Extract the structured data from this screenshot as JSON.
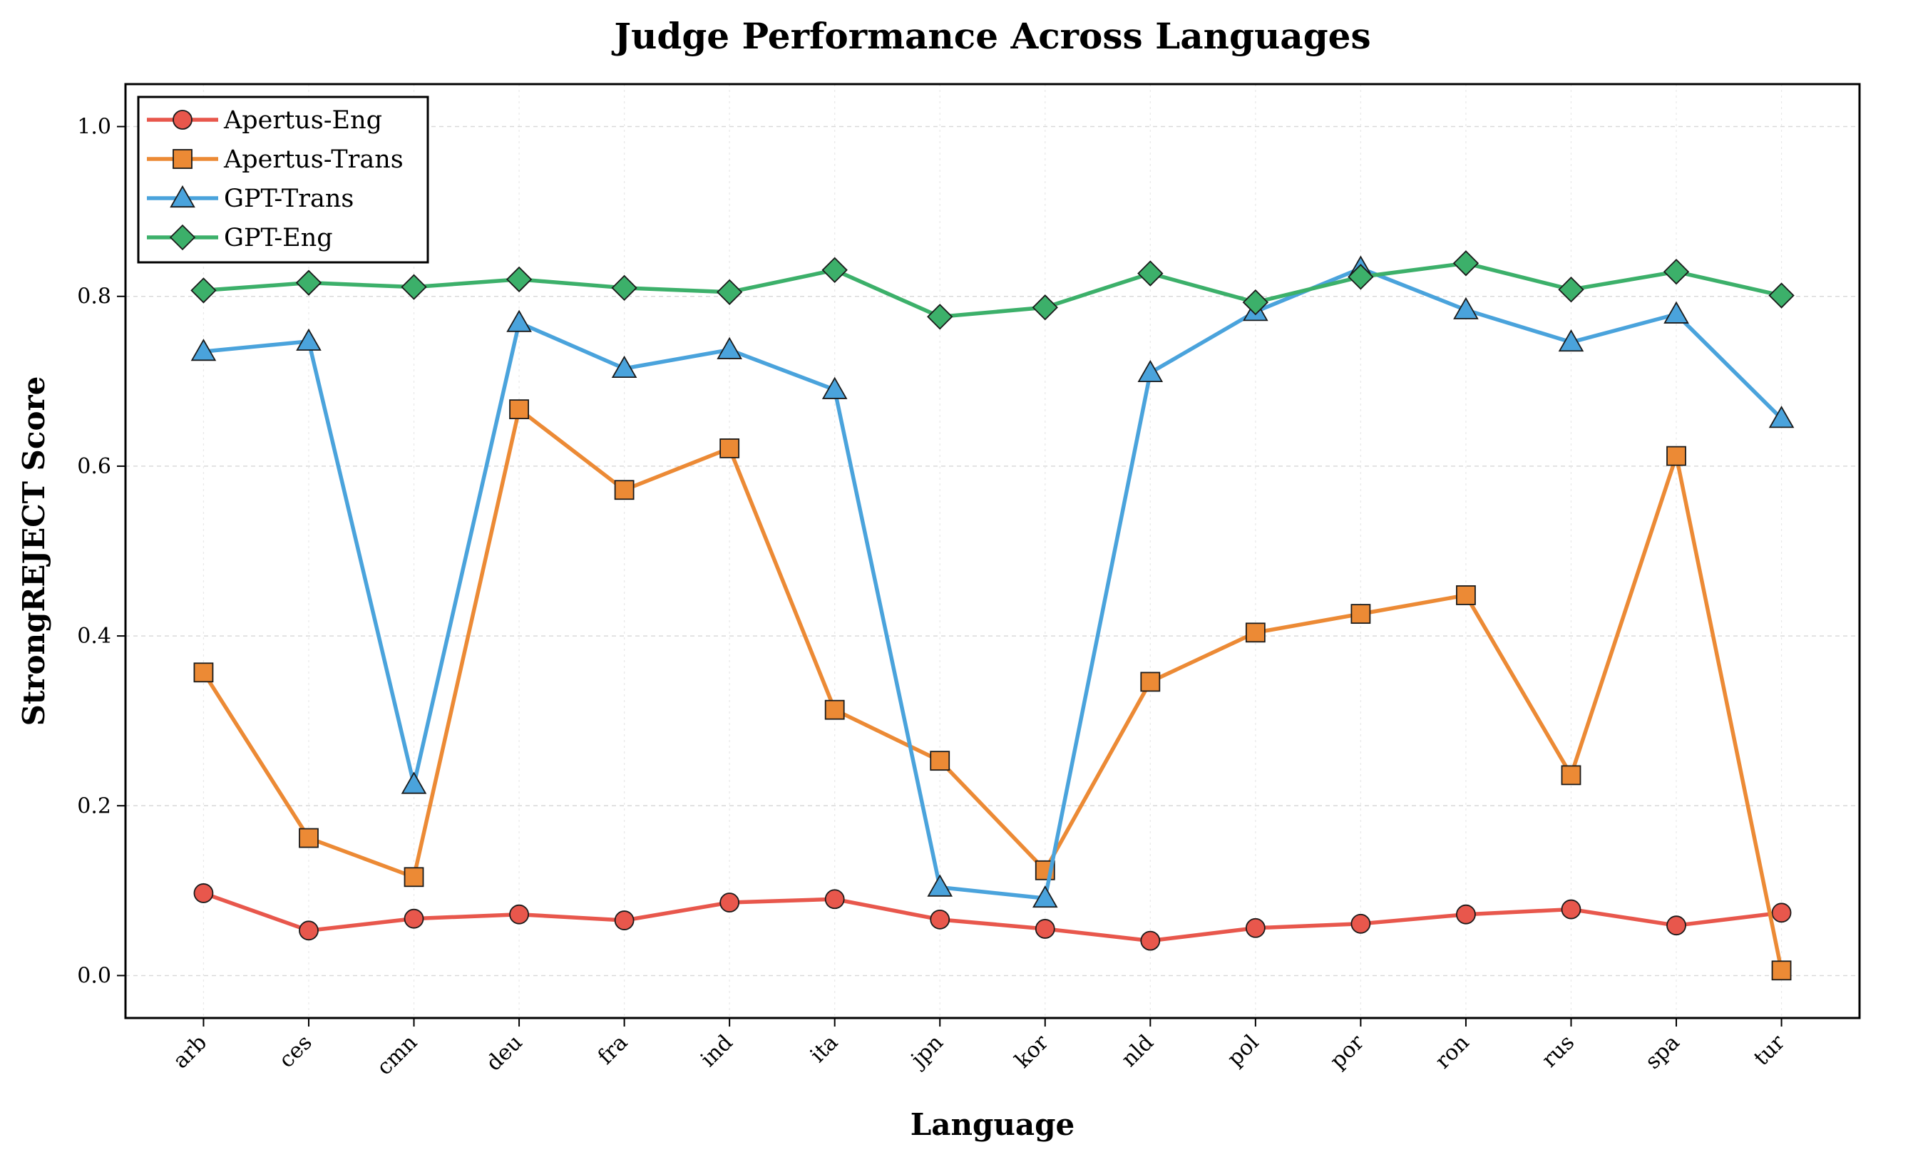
{
  "chart_data": {
    "type": "line",
    "title": "Judge Performance Across Languages",
    "xlabel": "Language",
    "ylabel": "StrongREJECT Score",
    "categories": [
      "arb",
      "ces",
      "cmn",
      "deu",
      "fra",
      "ind",
      "ita",
      "jpn",
      "kor",
      "nld",
      "pol",
      "por",
      "ron",
      "rus",
      "spa",
      "tur"
    ],
    "ylim": [
      -0.05,
      1.05
    ],
    "yticks": [
      0.0,
      0.2,
      0.4,
      0.6,
      0.8,
      1.0
    ],
    "ytick_labels": [
      "0.0",
      "0.2",
      "0.4",
      "0.6",
      "0.8",
      "1.0"
    ],
    "grid": true,
    "legend_position": "top-left",
    "series": [
      {
        "name": "Apertus-Eng",
        "color": "#e8574c",
        "marker": "circle",
        "values": [
          0.097,
          0.053,
          0.067,
          0.072,
          0.065,
          0.086,
          0.09,
          0.066,
          0.055,
          0.041,
          0.056,
          0.061,
          0.072,
          0.078,
          0.059,
          0.074
        ]
      },
      {
        "name": "Apertus-Trans",
        "color": "#ec8a35",
        "marker": "square",
        "values": [
          0.357,
          0.162,
          0.116,
          0.667,
          0.572,
          0.621,
          0.313,
          0.253,
          0.124,
          0.346,
          0.404,
          0.426,
          0.448,
          0.236,
          0.612,
          0.006
        ]
      },
      {
        "name": "GPT-Trans",
        "color": "#4aa3dc",
        "marker": "triangle",
        "values": [
          0.735,
          0.747,
          0.225,
          0.769,
          0.715,
          0.737,
          0.69,
          0.104,
          0.091,
          0.71,
          0.782,
          0.833,
          0.784,
          0.746,
          0.779,
          0.656
        ]
      },
      {
        "name": "GPT-Eng",
        "color": "#3cb06a",
        "marker": "diamond",
        "values": [
          0.807,
          0.816,
          0.811,
          0.82,
          0.81,
          0.805,
          0.831,
          0.776,
          0.787,
          0.827,
          0.793,
          0.823,
          0.839,
          0.808,
          0.829,
          0.801
        ]
      }
    ]
  }
}
